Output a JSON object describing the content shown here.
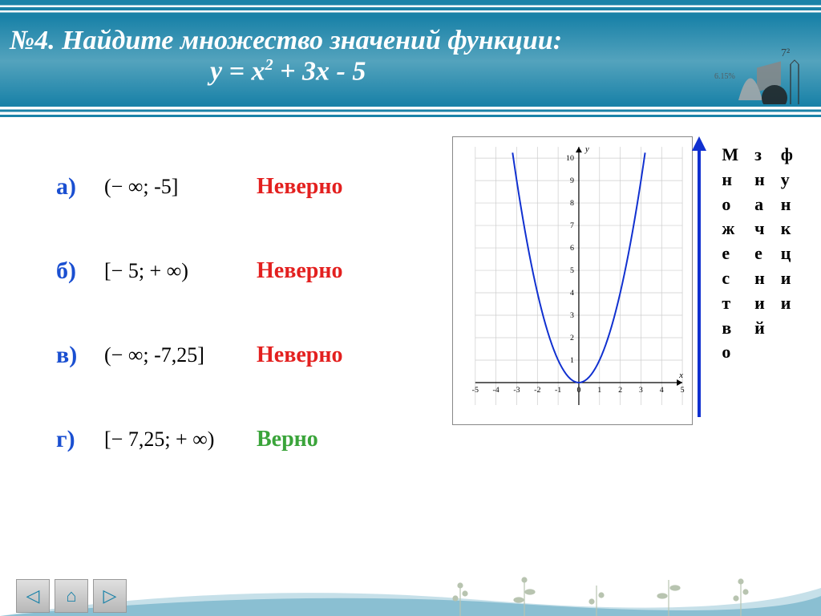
{
  "title": {
    "line1": "№4. Найдите множество значений функции:",
    "line2_html": "y = x<sup>2</sup> + 3x - 5"
  },
  "answers": [
    {
      "letter": "а)",
      "expr_html": "(− ∞; -5]",
      "verdict": "Неверно",
      "correct": false
    },
    {
      "letter": "б)",
      "expr_html": "[− 5; + ∞)",
      "verdict": "Неверно",
      "correct": false
    },
    {
      "letter": "в)",
      "expr_html": "(− ∞;  -7,25]",
      "verdict": "Неверно",
      "correct": false
    },
    {
      "letter": "г)",
      "expr_html": "[− 7,25; + ∞)",
      "verdict": "Верно",
      "correct": true
    }
  ],
  "graph": {
    "type": "line",
    "xlim": [
      -5,
      5
    ],
    "ylim": [
      -1,
      10.5
    ],
    "xticks": [
      -5,
      -4,
      -3,
      -2,
      -1,
      0,
      1,
      2,
      3,
      4,
      5
    ],
    "yticks": [
      1,
      2,
      3,
      4,
      5,
      6,
      7,
      8,
      9,
      10
    ],
    "grid_color": "#cccccc",
    "axis_color": "#000000",
    "curve_color": "#1030d0",
    "curve_width": 2,
    "x_axis_label": "x",
    "y_axis_label": "y",
    "parabola": {
      "formula": "x^2",
      "xmin": -3.2,
      "xmax": 3.2,
      "step": 0.1
    },
    "tick_fontsize": 10
  },
  "side_label": {
    "rows": [
      [
        "М",
        "з",
        "ф"
      ],
      [
        "н",
        "н",
        "у"
      ],
      [
        "о",
        "а",
        "н"
      ],
      [
        "ж",
        "ч",
        "к"
      ],
      [
        "е",
        "е",
        "ц"
      ],
      [
        "с",
        "н",
        "и"
      ],
      [
        "т",
        "и",
        "и"
      ],
      [
        "в",
        "й",
        ""
      ],
      [
        "о",
        "",
        ""
      ]
    ],
    "arrow_color": "#1030d0"
  },
  "nav": {
    "prev_glyph": "◁",
    "home_glyph": "⌂",
    "next_glyph": "▷"
  },
  "colors": {
    "header_bg": "#1a82a8",
    "letter_color": "#1a4fd1",
    "wrong_color": "#e3201f",
    "right_color": "#3aa43a",
    "plant_color": "#b8c4b0"
  }
}
